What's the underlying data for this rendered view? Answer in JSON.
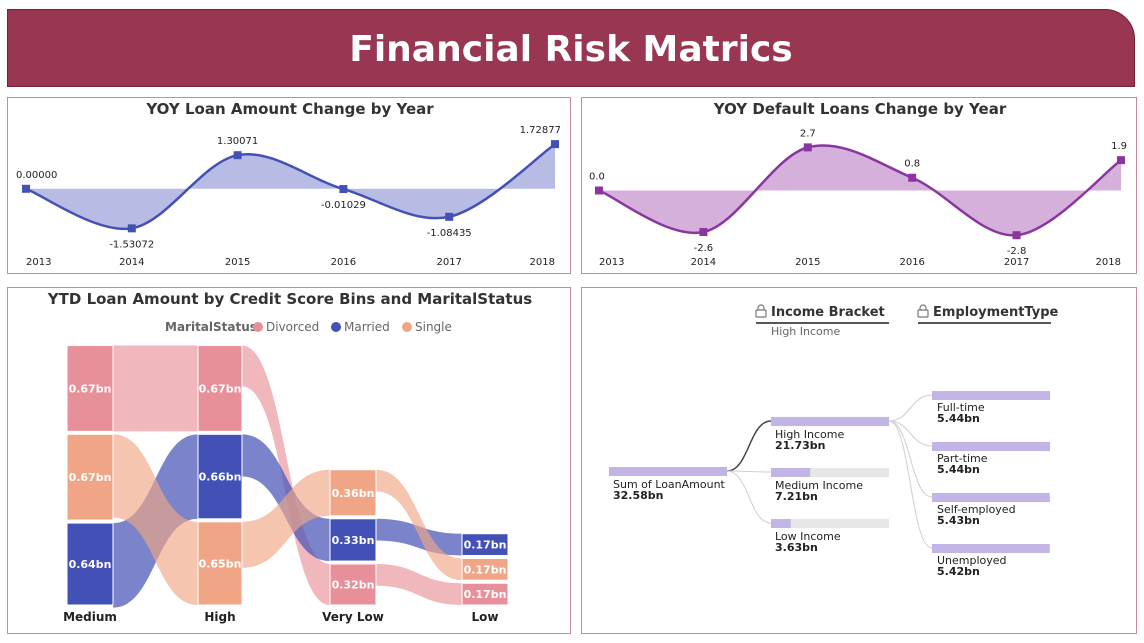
{
  "header": {
    "title": "Financial Risk Matrics"
  },
  "colors": {
    "loan_line": "#4350b5",
    "loan_area": "#b4b8e4",
    "default_line": "#8b35a0",
    "default_area": "#d2acd9",
    "divorced": "#e8909a",
    "married": "#4350b5",
    "single": "#f0a686",
    "decomp_bar": "#c3b4e6",
    "decomp_track": "#e6e6e6"
  },
  "chart_data": [
    {
      "type": "area",
      "title": "YOY Loan Amount Change by Year",
      "x": [
        "2013",
        "2014",
        "2015",
        "2016",
        "2017",
        "2018"
      ],
      "values": [
        0,
        -1.53072,
        1.30071,
        -0.01029,
        -1.08435,
        1.72877
      ],
      "labels": [
        "0.00000",
        "-1.53072",
        "1.30071",
        "-0.01029",
        "-1.08435",
        "1.72877"
      ],
      "ylim": [
        -1.75,
        1.85
      ]
    },
    {
      "type": "area",
      "title": "YOY Default Loans Change by Year",
      "x": [
        "2013",
        "2014",
        "2015",
        "2016",
        "2017",
        "2018"
      ],
      "values": [
        0.0,
        -2.6,
        2.7,
        0.8,
        -2.8,
        1.9
      ],
      "labels": [
        "0.0",
        "-2.6",
        "2.7",
        "0.8",
        "-2.8",
        "1.9"
      ],
      "ylim": [
        -3.1,
        3.1
      ]
    },
    {
      "type": "sankey",
      "title": "YTD Loan Amount by Credit Score Bins and MaritalStatus",
      "legend_title": "MaritalStatus",
      "legend": [
        "Divorced",
        "Married",
        "Single"
      ],
      "categories": [
        "Medium",
        "High",
        "Very Low",
        "Low"
      ],
      "nodes": [
        {
          "category": "Medium",
          "status": "Divorced",
          "value": 0.67,
          "label": "0.67bn"
        },
        {
          "category": "Medium",
          "status": "Single",
          "value": 0.67,
          "label": "0.67bn"
        },
        {
          "category": "Medium",
          "status": "Married",
          "value": 0.64,
          "label": "0.64bn"
        },
        {
          "category": "High",
          "status": "Divorced",
          "value": 0.67,
          "label": "0.67bn"
        },
        {
          "category": "High",
          "status": "Married",
          "value": 0.66,
          "label": "0.66bn"
        },
        {
          "category": "High",
          "status": "Single",
          "value": 0.65,
          "label": "0.65bn"
        },
        {
          "category": "Very Low",
          "status": "Single",
          "value": 0.36,
          "label": "0.36bn"
        },
        {
          "category": "Very Low",
          "status": "Married",
          "value": 0.33,
          "label": "0.33bn"
        },
        {
          "category": "Very Low",
          "status": "Divorced",
          "value": 0.32,
          "label": "0.32bn"
        },
        {
          "category": "Low",
          "status": "Married",
          "value": 0.17,
          "label": "0.17bn"
        },
        {
          "category": "Low",
          "status": "Single",
          "value": 0.17,
          "label": "0.17bn"
        },
        {
          "category": "Low",
          "status": "Divorced",
          "value": 0.17,
          "label": "0.17bn"
        }
      ]
    },
    {
      "type": "decomposition-tree",
      "levels": [
        {
          "name": "Income Bracket",
          "selected": "High Income"
        },
        {
          "name": "EmploymentType"
        }
      ],
      "root": {
        "label": "Sum of LoanAmount",
        "value": 32.58,
        "value_label": "32.58bn"
      },
      "income": [
        {
          "label": "High Income",
          "value": 21.73,
          "value_label": "21.73bn"
        },
        {
          "label": "Medium Income",
          "value": 7.21,
          "value_label": "7.21bn"
        },
        {
          "label": "Low Income",
          "value": 3.63,
          "value_label": "3.63bn"
        }
      ],
      "employment": [
        {
          "label": "Full-time",
          "value": 5.44,
          "value_label": "5.44bn"
        },
        {
          "label": "Part-time",
          "value": 5.44,
          "value_label": "5.44bn"
        },
        {
          "label": "Self-employed",
          "value": 5.43,
          "value_label": "5.43bn"
        },
        {
          "label": "Unemployed",
          "value": 5.42,
          "value_label": "5.42bn"
        }
      ]
    }
  ]
}
